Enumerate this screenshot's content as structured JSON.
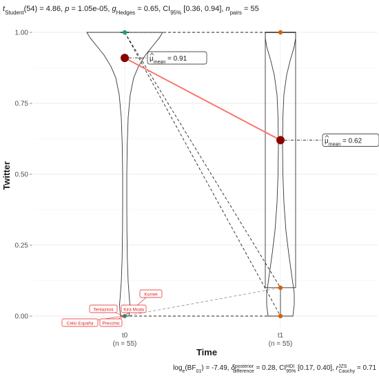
{
  "chart_data": {
    "type": "violin-box",
    "title": {
      "stat_prefix": "t",
      "stat_sub": "Student",
      "stat_rest": "(54) = 4.86, ",
      "p_label": "p",
      "p_rest": " = 1.05e-05, ",
      "g_label": "g",
      "g_sub": "Hedges",
      "g_rest": " = 0.65, CI",
      "ci_sub": "95%",
      "ci_rest": " [0.36, 0.94], ",
      "n_label": "n",
      "n_sub": "pairs",
      "n_rest": " = 55"
    },
    "subtitle": {
      "part1": "log",
      "part1_sub": "e",
      "part2": "(BF",
      "part2_sub": "01",
      "part3": ") = -7.49, ",
      "delta": "δ",
      "delta_sup": "posterior",
      "delta_sub": "difference",
      "part4": " = 0.28, CI",
      "ci_sup": "HDI",
      "ci_sub": "95%",
      "part5": " [0.17, 0.40], ",
      "r": "r",
      "r_sup": "JZS",
      "r_sub": "Cauchy",
      "part6": " = 0.71"
    },
    "xlabel": "Time",
    "ylabel": "Twitter",
    "ylim": [
      0,
      1
    ],
    "yticks": [
      "0.00",
      "0.25",
      "0.50",
      "0.75",
      "1.00"
    ],
    "categories": [
      {
        "name": "t0",
        "n_label": "(n = 55)",
        "mean": 0.91,
        "mean_label": "0.91",
        "color": "#1b9e77"
      },
      {
        "name": "t1",
        "n_label": "(n = 55)",
        "mean": 0.62,
        "mean_label": "0.62",
        "color": "#d95f02"
      }
    ],
    "mean_symbol": "μ",
    "mean_sub": "mean",
    "mean_color": "#8b0000",
    "mean_line_color": "#f8766d",
    "outlier_color": "#e41a1c",
    "outlier_labels": [
      "Kornet",
      "Tentazioni",
      "Kira Moda",
      "Celio España",
      "Precchio"
    ],
    "grid": true
  }
}
